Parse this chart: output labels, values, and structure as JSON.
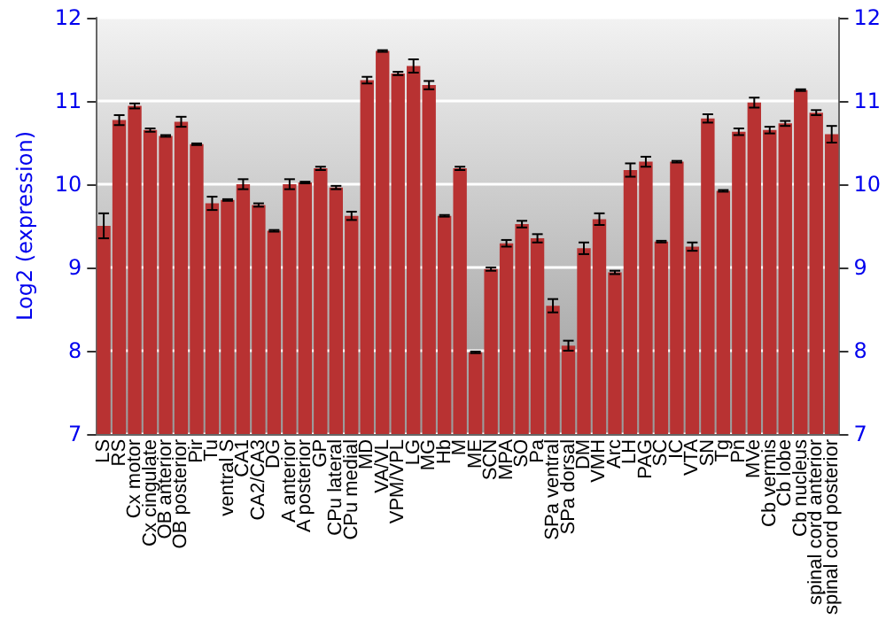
{
  "chart_data": {
    "type": "bar",
    "ylabel": "Log2 (expression)",
    "categories": [
      "LS",
      "RS",
      "Cx motor",
      "Cx cingulate",
      "OB anterior",
      "OB posterior",
      "Pir",
      "Tu",
      "ventral S",
      "CA1",
      "CA2/CA3",
      "DG",
      "A anterior",
      "A posterior",
      "GP",
      "CPu lateral",
      "CPu medial",
      "MD",
      "VA/VL",
      "VPM/VPL",
      "LG",
      "MG",
      "Hb",
      "M",
      "ME",
      "SCN",
      "MPA",
      "SO",
      "Pa",
      "SPa ventral",
      "SPa dorsal",
      "DM",
      "VMH",
      "Arc",
      "LH",
      "PAG",
      "SC",
      "IC",
      "VTA",
      "SN",
      "Tg",
      "Pn",
      "MVe",
      "Cb vermis",
      "Cb lobe",
      "Cb nucleus",
      "spinal cord anterior",
      "spinal cord posterior"
    ],
    "values": [
      9.5,
      10.77,
      10.94,
      10.65,
      10.58,
      10.75,
      10.48,
      9.77,
      9.81,
      10.0,
      9.75,
      9.44,
      10.0,
      10.02,
      10.19,
      9.96,
      9.62,
      11.25,
      11.6,
      11.33,
      11.42,
      11.19,
      9.62,
      10.19,
      7.98,
      8.98,
      9.29,
      9.52,
      9.35,
      8.54,
      8.06,
      9.23,
      9.58,
      8.94,
      10.17,
      10.27,
      9.31,
      10.27,
      9.25,
      10.79,
      9.92,
      10.63,
      10.98,
      10.65,
      10.73,
      11.13,
      10.86,
      10.6
    ],
    "errors": [
      0.15,
      0.06,
      0.03,
      0.02,
      0.01,
      0.06,
      0.01,
      0.08,
      0.01,
      0.06,
      0.02,
      0.01,
      0.06,
      0.01,
      0.02,
      0.02,
      0.05,
      0.04,
      0.01,
      0.02,
      0.08,
      0.05,
      0.01,
      0.02,
      0.01,
      0.02,
      0.04,
      0.04,
      0.05,
      0.08,
      0.06,
      0.07,
      0.07,
      0.02,
      0.08,
      0.06,
      0.01,
      0.01,
      0.05,
      0.05,
      0.01,
      0.04,
      0.06,
      0.04,
      0.03,
      0.01,
      0.03,
      0.1
    ],
    "color": "#b83232",
    "ylim": [
      7,
      12
    ],
    "yticks": [
      7,
      8,
      9,
      10,
      11,
      12
    ],
    "y2lim": [
      7,
      12
    ],
    "y2ticks": [
      7,
      8,
      9,
      10,
      11,
      12
    ],
    "grid": "y"
  }
}
